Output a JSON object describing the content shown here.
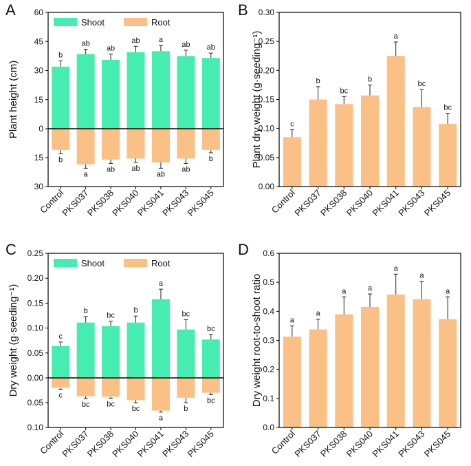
{
  "figure": {
    "colors": {
      "shoot": "#46EDB0",
      "root": "#FBC086",
      "axis": "#000000",
      "error": "#222222"
    },
    "categories": [
      "Control",
      "PKS037",
      "PKS038",
      "PKS040",
      "PKS041",
      "PKS043",
      "PKS045"
    ]
  },
  "chart_data": [
    {
      "panel": "A",
      "type": "bar",
      "title": "",
      "xlabel": "",
      "ylabel": "Plant height (cm)",
      "categories": [
        "Control",
        "PKS037",
        "PKS038",
        "PKS040",
        "PKS041",
        "PKS043",
        "PKS045"
      ],
      "legend": {
        "placement": "top-left",
        "entries": [
          "Shoot",
          "Root"
        ]
      },
      "ylim_top": [
        0,
        60
      ],
      "ylim_bottom": [
        0,
        30
      ],
      "yticks_top": [
        0,
        15,
        30,
        45,
        60
      ],
      "yticks_bottom": [
        15,
        30
      ],
      "tick_labels_top": [
        "0",
        "15",
        "30",
        "45",
        "60"
      ],
      "tick_labels_bottom": [
        "15",
        "30"
      ],
      "series": [
        {
          "name": "Shoot",
          "direction": "up",
          "values": [
            32,
            38.5,
            35.5,
            39.5,
            40,
            37.5,
            36.5
          ],
          "errors": [
            3,
            2.5,
            3,
            3,
            3,
            3,
            2.5
          ],
          "letters": [
            "b",
            "ab",
            "ab",
            "ab",
            "a",
            "ab",
            "ab"
          ]
        },
        {
          "name": "Root",
          "direction": "down",
          "values": [
            11,
            18.5,
            16,
            15.5,
            17.5,
            15.5,
            11
          ],
          "errors": [
            2,
            2,
            2,
            2,
            3,
            2.5,
            1.5
          ],
          "letters": [
            "b",
            "a",
            "ab",
            "ab",
            "ab",
            "ab",
            "b"
          ]
        }
      ]
    },
    {
      "panel": "B",
      "type": "bar",
      "title": "",
      "xlabel": "",
      "ylabel": "Plant dry weight (g·seeding⁻¹)",
      "categories": [
        "Control",
        "PKS037",
        "PKS038",
        "PKS040",
        "PKS041",
        "PKS043",
        "PKS045"
      ],
      "ylim": [
        0,
        0.3
      ],
      "yticks": [
        0,
        0.05,
        0.1,
        0.15,
        0.2,
        0.25,
        0.3
      ],
      "tick_labels": [
        "0.00",
        "0.05",
        "0.10",
        "0.15",
        "0.20",
        "0.25",
        "0.30"
      ],
      "series": [
        {
          "name": "Plant",
          "direction": "up",
          "values": [
            0.085,
            0.15,
            0.142,
            0.157,
            0.225,
            0.137,
            0.108
          ],
          "errors": [
            0.013,
            0.022,
            0.013,
            0.018,
            0.024,
            0.03,
            0.018
          ],
          "letters": [
            "c",
            "b",
            "bc",
            "b",
            "a",
            "bc",
            "bc"
          ]
        }
      ]
    },
    {
      "panel": "C",
      "type": "bar",
      "title": "",
      "xlabel": "",
      "ylabel": "Dry weight (g·seeding⁻¹)",
      "categories": [
        "Control",
        "PKS037",
        "PKS038",
        "PKS040",
        "PKS041",
        "PKS043",
        "PKS045"
      ],
      "legend": {
        "placement": "top-left",
        "entries": [
          "Shoot",
          "Root"
        ]
      },
      "ylim_top": [
        0,
        0.25
      ],
      "ylim_bottom": [
        0,
        0.1
      ],
      "yticks_top": [
        0,
        0.05,
        0.1,
        0.15,
        0.2,
        0.25
      ],
      "yticks_bottom": [
        0.05,
        0.1
      ],
      "tick_labels_top": [
        "0.00",
        "0.05",
        "0.10",
        "0.15",
        "0.20",
        "0.25"
      ],
      "tick_labels_bottom": [
        "0.05",
        "0.10"
      ],
      "series": [
        {
          "name": "Shoot",
          "direction": "up",
          "values": [
            0.064,
            0.111,
            0.104,
            0.111,
            0.158,
            0.097,
            0.077
          ],
          "errors": [
            0.008,
            0.012,
            0.01,
            0.013,
            0.02,
            0.02,
            0.01
          ],
          "letters": [
            "c",
            "b",
            "bc",
            "b",
            "a",
            "bc",
            "bc"
          ]
        },
        {
          "name": "Root",
          "direction": "down",
          "values": [
            0.02,
            0.037,
            0.038,
            0.045,
            0.066,
            0.04,
            0.03
          ],
          "errors": [
            0.003,
            0.005,
            0.003,
            0.005,
            0.003,
            0.01,
            0.004
          ],
          "letters": [
            "c",
            "bc",
            "bc",
            "bc",
            "a",
            "b",
            "bc"
          ]
        }
      ]
    },
    {
      "panel": "D",
      "type": "bar",
      "title": "",
      "xlabel": "",
      "ylabel": "Dry weight root-to-shoot ratio",
      "categories": [
        "Control",
        "PKS037",
        "PKS038",
        "PKS040",
        "PKS041",
        "PKS043",
        "PKS045"
      ],
      "ylim": [
        0,
        0.6
      ],
      "yticks": [
        0,
        0.1,
        0.2,
        0.3,
        0.4,
        0.5,
        0.6
      ],
      "tick_labels": [
        "0.0",
        "0.1",
        "0.2",
        "0.3",
        "0.4",
        "0.5",
        "0.6"
      ],
      "series": [
        {
          "name": "Ratio",
          "direction": "up",
          "values": [
            0.313,
            0.338,
            0.39,
            0.415,
            0.458,
            0.442,
            0.373
          ],
          "errors": [
            0.037,
            0.035,
            0.06,
            0.045,
            0.07,
            0.062,
            0.077
          ],
          "letters": [
            "a",
            "a",
            "a",
            "a",
            "a",
            "a",
            "a"
          ]
        }
      ]
    }
  ]
}
